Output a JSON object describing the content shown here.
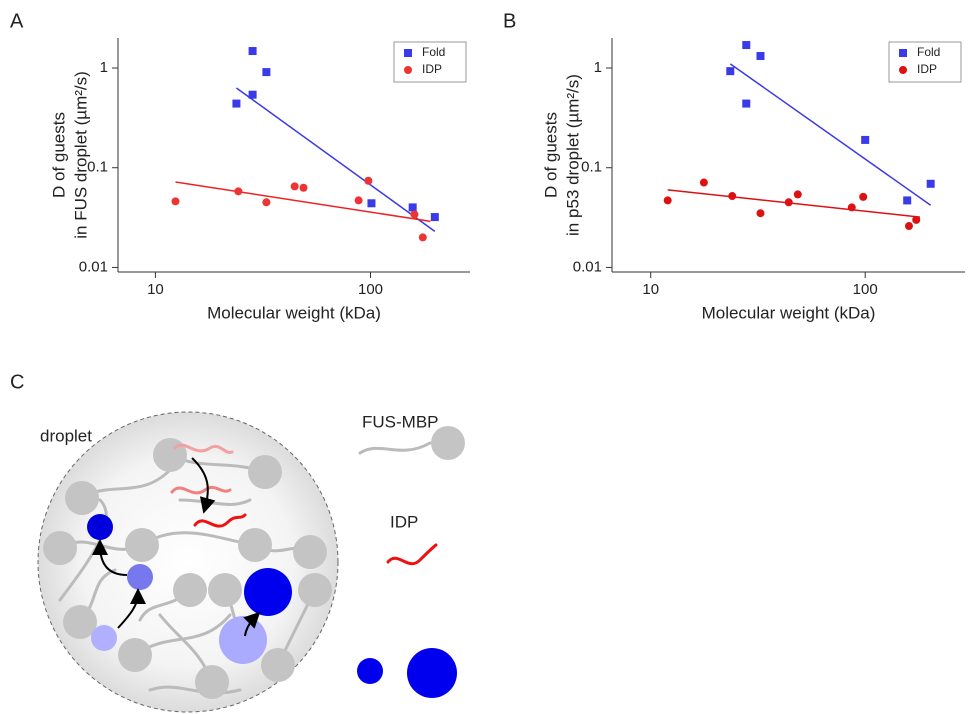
{
  "panels": [
    "A",
    "B",
    "C"
  ],
  "diagram": {
    "droplet": "droplet",
    "scaffold": "FUS-MBP",
    "client": "IDP"
  },
  "chart_data": [
    {
      "type": "scatter",
      "xlabel": "Molecular weight (kDa)",
      "ylabel": [
        "D of guests",
        "in FUS droplet (µm²/s)"
      ],
      "xlog": true,
      "ylog": true,
      "xlim": [
        6.7,
        290
      ],
      "ylim": [
        0.009,
        2
      ],
      "xticks": [
        10,
        100
      ],
      "yticks": [
        0.01,
        0.1,
        1
      ],
      "legend": "top-right",
      "series": [
        {
          "name": "Fold",
          "color": "#3a3ae8",
          "marker": "square",
          "x": [
            23.8,
            28.3,
            28.3,
            32.8,
            101,
            157,
            199
          ],
          "values": [
            0.44,
            1.48,
            0.54,
            0.91,
            0.044,
            0.04,
            0.032
          ]
        },
        {
          "name": "IDP",
          "color": "#ee3333",
          "marker": "circle",
          "x": [
            12.4,
            24.3,
            32.8,
            44.4,
            48.8,
            88,
            97.7,
            160,
            175
          ],
          "values": [
            0.046,
            0.058,
            0.045,
            0.065,
            0.063,
            0.047,
            0.074,
            0.034,
            0.02
          ]
        }
      ],
      "fits": [
        {
          "color": "#3a3ae8",
          "x": [
            23.8,
            199
          ],
          "values": [
            0.63,
            0.023
          ]
        },
        {
          "color": "#ee2222",
          "x": [
            12.4,
            190
          ],
          "values": [
            0.072,
            0.029
          ]
        }
      ]
    },
    {
      "type": "scatter",
      "xlabel": "Molecular weight (kDa)",
      "ylabel": [
        "D of guests",
        "in p53 droplet (µm²/s)"
      ],
      "xlog": true,
      "ylog": true,
      "xlim": [
        6.6,
        292
      ],
      "ylim": [
        0.009,
        2
      ],
      "xticks": [
        10,
        100
      ],
      "yticks": [
        0.01,
        0.1,
        1
      ],
      "legend": "top-right",
      "series": [
        {
          "name": "Fold",
          "color": "#3a3ae8",
          "marker": "square",
          "x": [
            23.5,
            27.9,
            27.9,
            32.5,
            100,
            157,
            202
          ],
          "values": [
            0.93,
            1.7,
            0.44,
            1.32,
            0.19,
            0.047,
            0.069
          ]
        },
        {
          "name": "IDP",
          "color": "#dd1111",
          "marker": "circle",
          "x": [
            12,
            17.7,
            24,
            32.5,
            44,
            48.5,
            86.6,
            97.9,
            160,
            173
          ],
          "values": [
            0.047,
            0.071,
            0.052,
            0.035,
            0.045,
            0.054,
            0.04,
            0.051,
            0.026,
            0.03
          ]
        }
      ],
      "fits": [
        {
          "color": "#3a3ae8",
          "x": [
            23.5,
            202
          ],
          "values": [
            1.1,
            0.042
          ]
        },
        {
          "color": "#dd1111",
          "x": [
            12,
            180
          ],
          "values": [
            0.06,
            0.032
          ]
        }
      ]
    }
  ]
}
